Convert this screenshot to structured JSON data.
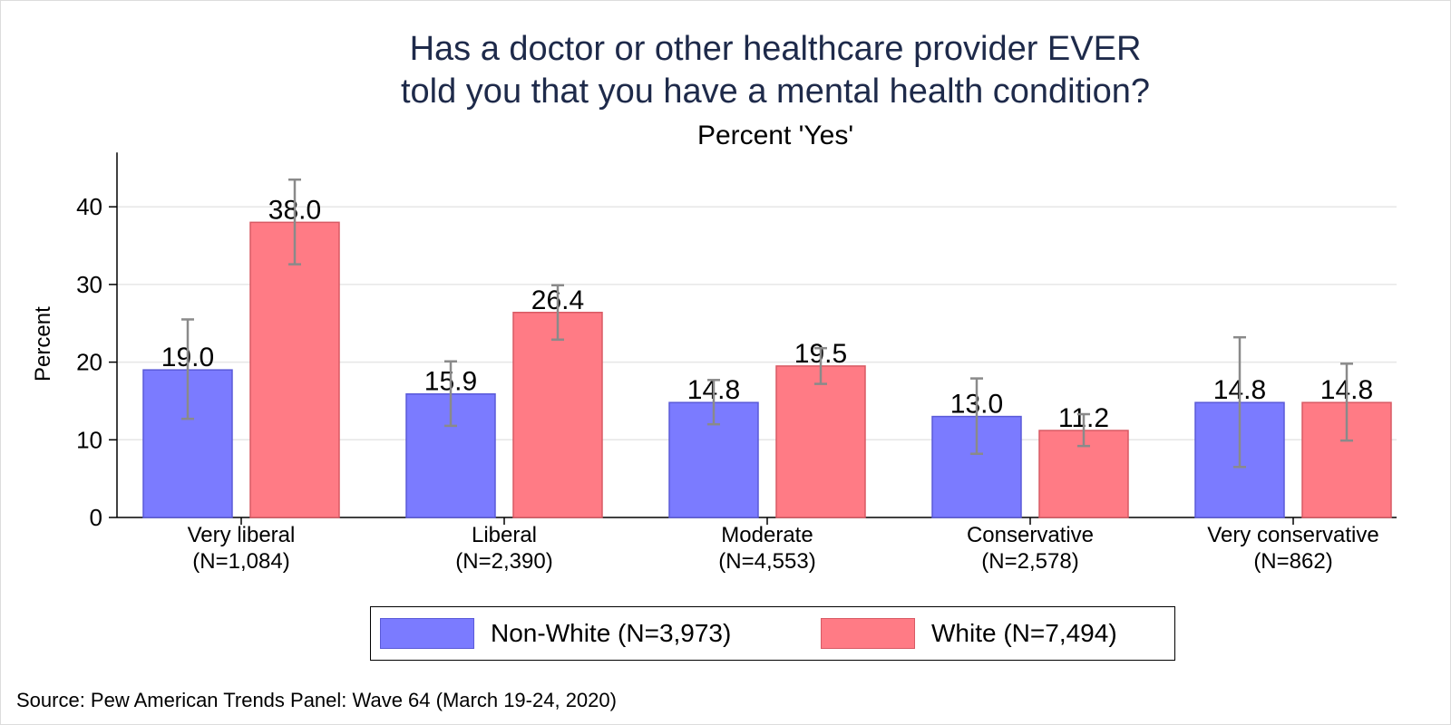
{
  "chart_data": {
    "type": "bar",
    "title_lines": [
      "Has a doctor or other healthcare provider EVER",
      "told you that you have a mental health condition?"
    ],
    "subtitle": "Percent 'Yes'",
    "xlabel": "",
    "ylabel": "Percent",
    "ylim": [
      0,
      47
    ],
    "yticks": [
      0,
      10,
      20,
      30,
      40
    ],
    "grid": true,
    "legend_position": "bottom",
    "categories": [
      "Very liberal",
      "Liberal",
      "Moderate",
      "Conservative",
      "Very conservative"
    ],
    "category_n": [
      "(N=1,084)",
      "(N=2,390)",
      "(N=4,553)",
      "(N=2,578)",
      "(N=862)"
    ],
    "series": [
      {
        "name": "Non-White (N=3,973)",
        "color": "#7b7bff",
        "border": "#5a5ad8",
        "values": [
          19.0,
          15.9,
          14.8,
          13.0,
          14.8
        ],
        "labels": [
          "19.0",
          "15.9",
          "14.8",
          "13.0",
          "14.8"
        ],
        "ci_low": [
          12.7,
          11.8,
          12.0,
          8.2,
          6.5
        ],
        "ci_high": [
          25.5,
          20.1,
          17.7,
          17.9,
          23.2
        ]
      },
      {
        "name": "White (N=7,494)",
        "color": "#ff7b85",
        "border": "#d85a64",
        "values": [
          38.0,
          26.4,
          19.5,
          11.2,
          14.8
        ],
        "labels": [
          "38.0",
          "26.4",
          "19.5",
          "11.2",
          "14.8"
        ],
        "ci_low": [
          32.6,
          22.9,
          17.2,
          9.2,
          9.9
        ],
        "ci_high": [
          43.5,
          29.9,
          21.8,
          13.3,
          19.8
        ]
      }
    ]
  },
  "source": "Source: Pew American Trends Panel: Wave 64 (March 19-24, 2020)"
}
